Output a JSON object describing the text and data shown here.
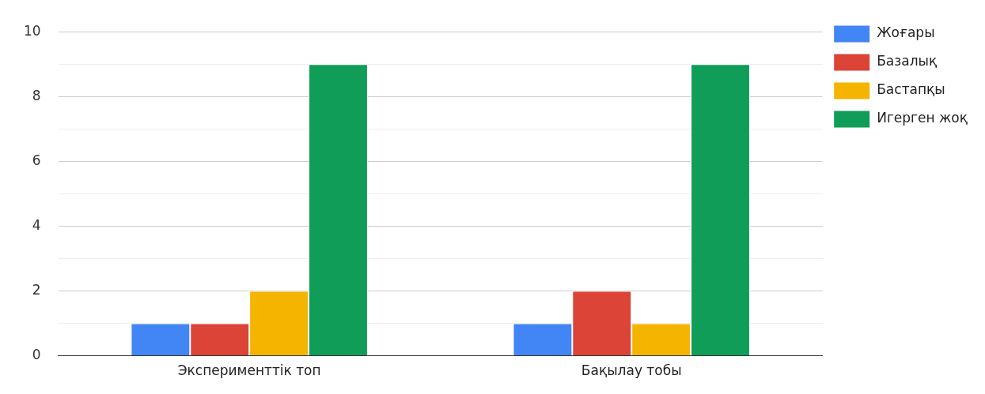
{
  "chart_data": {
    "type": "bar",
    "categories": [
      "Эксперименттік топ",
      "Бақылау тобы"
    ],
    "series": [
      {
        "name": "Жоғары",
        "color": "#4285f4",
        "values": [
          1,
          1
        ]
      },
      {
        "name": "Базалық",
        "color": "#db4437",
        "values": [
          1,
          2
        ]
      },
      {
        "name": "Бастапқы",
        "color": "#f4b400",
        "values": [
          2,
          1
        ]
      },
      {
        "name": "Игерген жоқ",
        "color": "#0f9d58",
        "values": [
          9,
          9
        ]
      }
    ],
    "ylim": [
      0,
      10
    ],
    "yticks": [
      0,
      {
        "value": 1,
        "label": null
      },
      2,
      {
        "value": 3,
        "label": null
      },
      4,
      {
        "value": 5,
        "label": null
      },
      6,
      {
        "value": 7,
        "label": null
      },
      8,
      {
        "value": 9,
        "label": null
      },
      10
    ],
    "grid": "y",
    "legend": "top right"
  }
}
